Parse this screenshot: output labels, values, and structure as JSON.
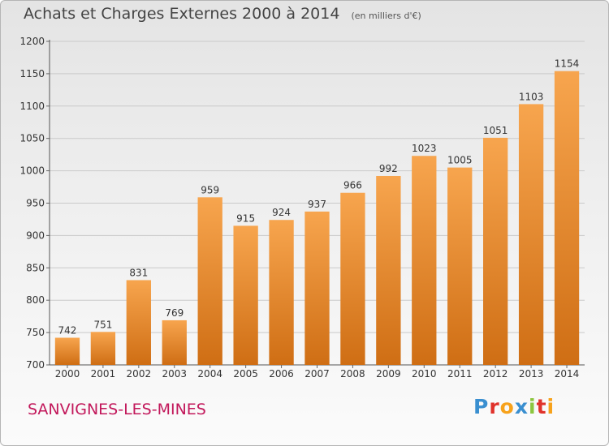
{
  "header": {
    "title": "Achats et Charges Externes 2000 à 2014",
    "subtitle": "(en milliers d'€)"
  },
  "footer": {
    "city": "SANVIGNES-LES-MINES",
    "logo_letters": [
      "P",
      "r",
      "o",
      "x",
      "i",
      "t",
      "i"
    ],
    "logo_colors": [
      "#3a8fd0",
      "#e0322b",
      "#f7a21b",
      "#3a8fd0",
      "#8cc63f",
      "#e0322b",
      "#f7a21b"
    ]
  },
  "colors": {
    "bar_top": "#f7a54e",
    "bar_bottom": "#cf6e14",
    "grid": "#c9c9c9",
    "axis_text": "#333333"
  },
  "chart_data": {
    "type": "bar",
    "title": "Achats et Charges Externes 2000 à 2014",
    "subtitle": "(en milliers d'€)",
    "xlabel": "",
    "ylabel": "",
    "categories": [
      "2000",
      "2001",
      "2002",
      "2003",
      "2004",
      "2005",
      "2006",
      "2007",
      "2008",
      "2009",
      "2010",
      "2011",
      "2012",
      "2013",
      "2014"
    ],
    "values": [
      742,
      751,
      831,
      769,
      959,
      915,
      924,
      937,
      966,
      992,
      1023,
      1005,
      1051,
      1103,
      1154
    ],
    "ylim": [
      700,
      1200
    ],
    "yticks": [
      700,
      750,
      800,
      850,
      900,
      950,
      1000,
      1050,
      1100,
      1150,
      1200
    ],
    "grid": true,
    "legend": "none"
  }
}
